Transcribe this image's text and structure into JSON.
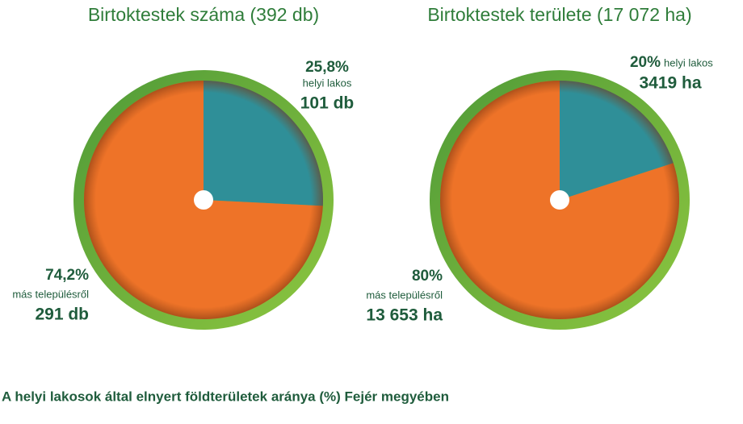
{
  "chart_data": [
    {
      "type": "pie",
      "title": "Birtoktestek száma (392 db)",
      "categories": [
        "helyi lakos",
        "más településről"
      ],
      "values": [
        25.8,
        74.2
      ],
      "value_labels": [
        "25,8%",
        "74,2%"
      ],
      "amounts": [
        101,
        291
      ],
      "amount_labels": [
        "101 db",
        "291 db"
      ],
      "colors": [
        "#2f8f98",
        "#ee7328"
      ]
    },
    {
      "type": "pie",
      "title": "Birtoktestek területe (17 072 ha)",
      "categories": [
        "helyi lakos",
        "más településről"
      ],
      "values": [
        20,
        80
      ],
      "value_labels": [
        "20%",
        "80%"
      ],
      "amounts": [
        3419,
        13653
      ],
      "amount_labels": [
        "3419 ha",
        "13 653 ha"
      ],
      "colors": [
        "#2f8f98",
        "#ee7328"
      ]
    }
  ],
  "caption": "A helyi lakosok által elnyert földterületek aránya (%) Fejér megyében"
}
